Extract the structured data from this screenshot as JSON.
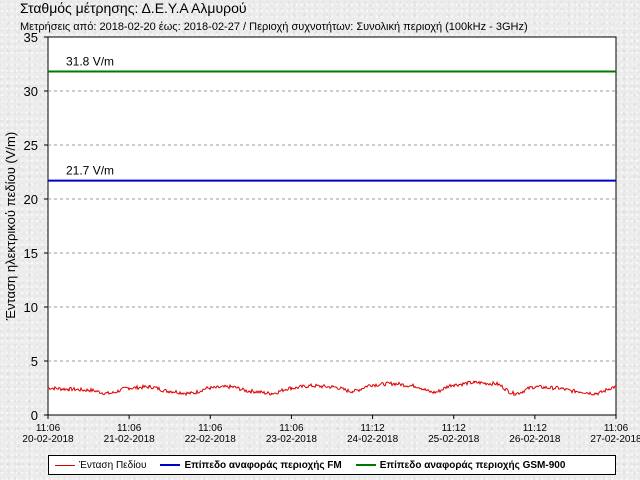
{
  "header": {
    "title": "Σταθμός μέτρησης: Δ.Ε.Υ.Α Αλμυρού",
    "subtitle": "Μετρήσεις από: 2018-02-20 έως: 2018-02-27 / Περιοχή συχνοτήτων: Συνολική περιοχή (100kHz - 3GHz)"
  },
  "colors": {
    "field": "#dd0000",
    "fm": "#0000cc",
    "gsm": "#007700",
    "grid": "#999999",
    "plot_bg": "#ffffff"
  },
  "chart_data": {
    "type": "line",
    "ylabel": "Ένταση ηλεκτρικού πεδίου (V/m)",
    "ylim": [
      0,
      35
    ],
    "yticks": [
      0,
      5,
      10,
      15,
      20,
      25,
      30,
      35
    ],
    "grid": "horizontal dashed",
    "xlim": [
      "2018-02-20 11:06",
      "2018-02-27 11:06"
    ],
    "xticks": [
      {
        "time": "11:06",
        "date": "20-02-2018"
      },
      {
        "time": "11:06",
        "date": "21-02-2018"
      },
      {
        "time": "11:06",
        "date": "22-02-2018"
      },
      {
        "time": "11:06",
        "date": "23-02-2018"
      },
      {
        "time": "11:12",
        "date": "24-02-2018"
      },
      {
        "time": "11:12",
        "date": "25-02-2018"
      },
      {
        "time": "11:12",
        "date": "26-02-2018"
      },
      {
        "time": "11:06",
        "date": "27-02-2018"
      }
    ],
    "reference_lines": [
      {
        "name": "Επίπεδο αναφοράς περιοχής GSM-900",
        "value": 31.8,
        "label": "31.8 V/m",
        "color": "#007700"
      },
      {
        "name": "Επίπεδο αναφοράς περιοχής FM",
        "value": 21.7,
        "label": "21.7 V/m",
        "color": "#0000cc"
      }
    ],
    "series": [
      {
        "name": "Ένταση Πεδίου",
        "color": "#dd0000",
        "x": [
          "2018-02-20 11:06",
          "2018-02-20 17:06",
          "2018-02-20 23:06",
          "2018-02-21 05:06",
          "2018-02-21 11:06",
          "2018-02-21 17:06",
          "2018-02-21 23:06",
          "2018-02-22 05:06",
          "2018-02-22 11:06",
          "2018-02-22 17:06",
          "2018-02-22 23:06",
          "2018-02-23 05:06",
          "2018-02-23 11:06",
          "2018-02-23 17:06",
          "2018-02-23 23:06",
          "2018-02-24 05:06",
          "2018-02-24 11:12",
          "2018-02-24 17:12",
          "2018-02-24 23:12",
          "2018-02-25 05:12",
          "2018-02-25 11:12",
          "2018-02-25 17:12",
          "2018-02-25 23:12",
          "2018-02-26 05:12",
          "2018-02-26 11:12",
          "2018-02-26 17:12",
          "2018-02-26 23:12",
          "2018-02-27 05:12",
          "2018-02-27 11:06"
        ],
        "values": [
          2.5,
          2.4,
          2.3,
          2.0,
          2.5,
          2.6,
          2.2,
          2.0,
          2.5,
          2.6,
          2.2,
          2.0,
          2.5,
          2.7,
          2.6,
          2.2,
          2.8,
          2.9,
          2.7,
          2.1,
          2.8,
          3.0,
          2.9,
          2.0,
          2.6,
          2.5,
          2.2,
          2.0,
          2.6
        ]
      }
    ],
    "legend": "bottom"
  },
  "legend": [
    {
      "label": "Ένταση Πεδίου",
      "color": "#dd0000",
      "style": "thin"
    },
    {
      "label": "Επίπεδο αναφοράς περιοχής FM",
      "color": "#0000cc",
      "style": "thick"
    },
    {
      "label": "Επίπεδο αναφοράς περιοχής GSM-900",
      "color": "#007700",
      "style": "thick"
    }
  ]
}
